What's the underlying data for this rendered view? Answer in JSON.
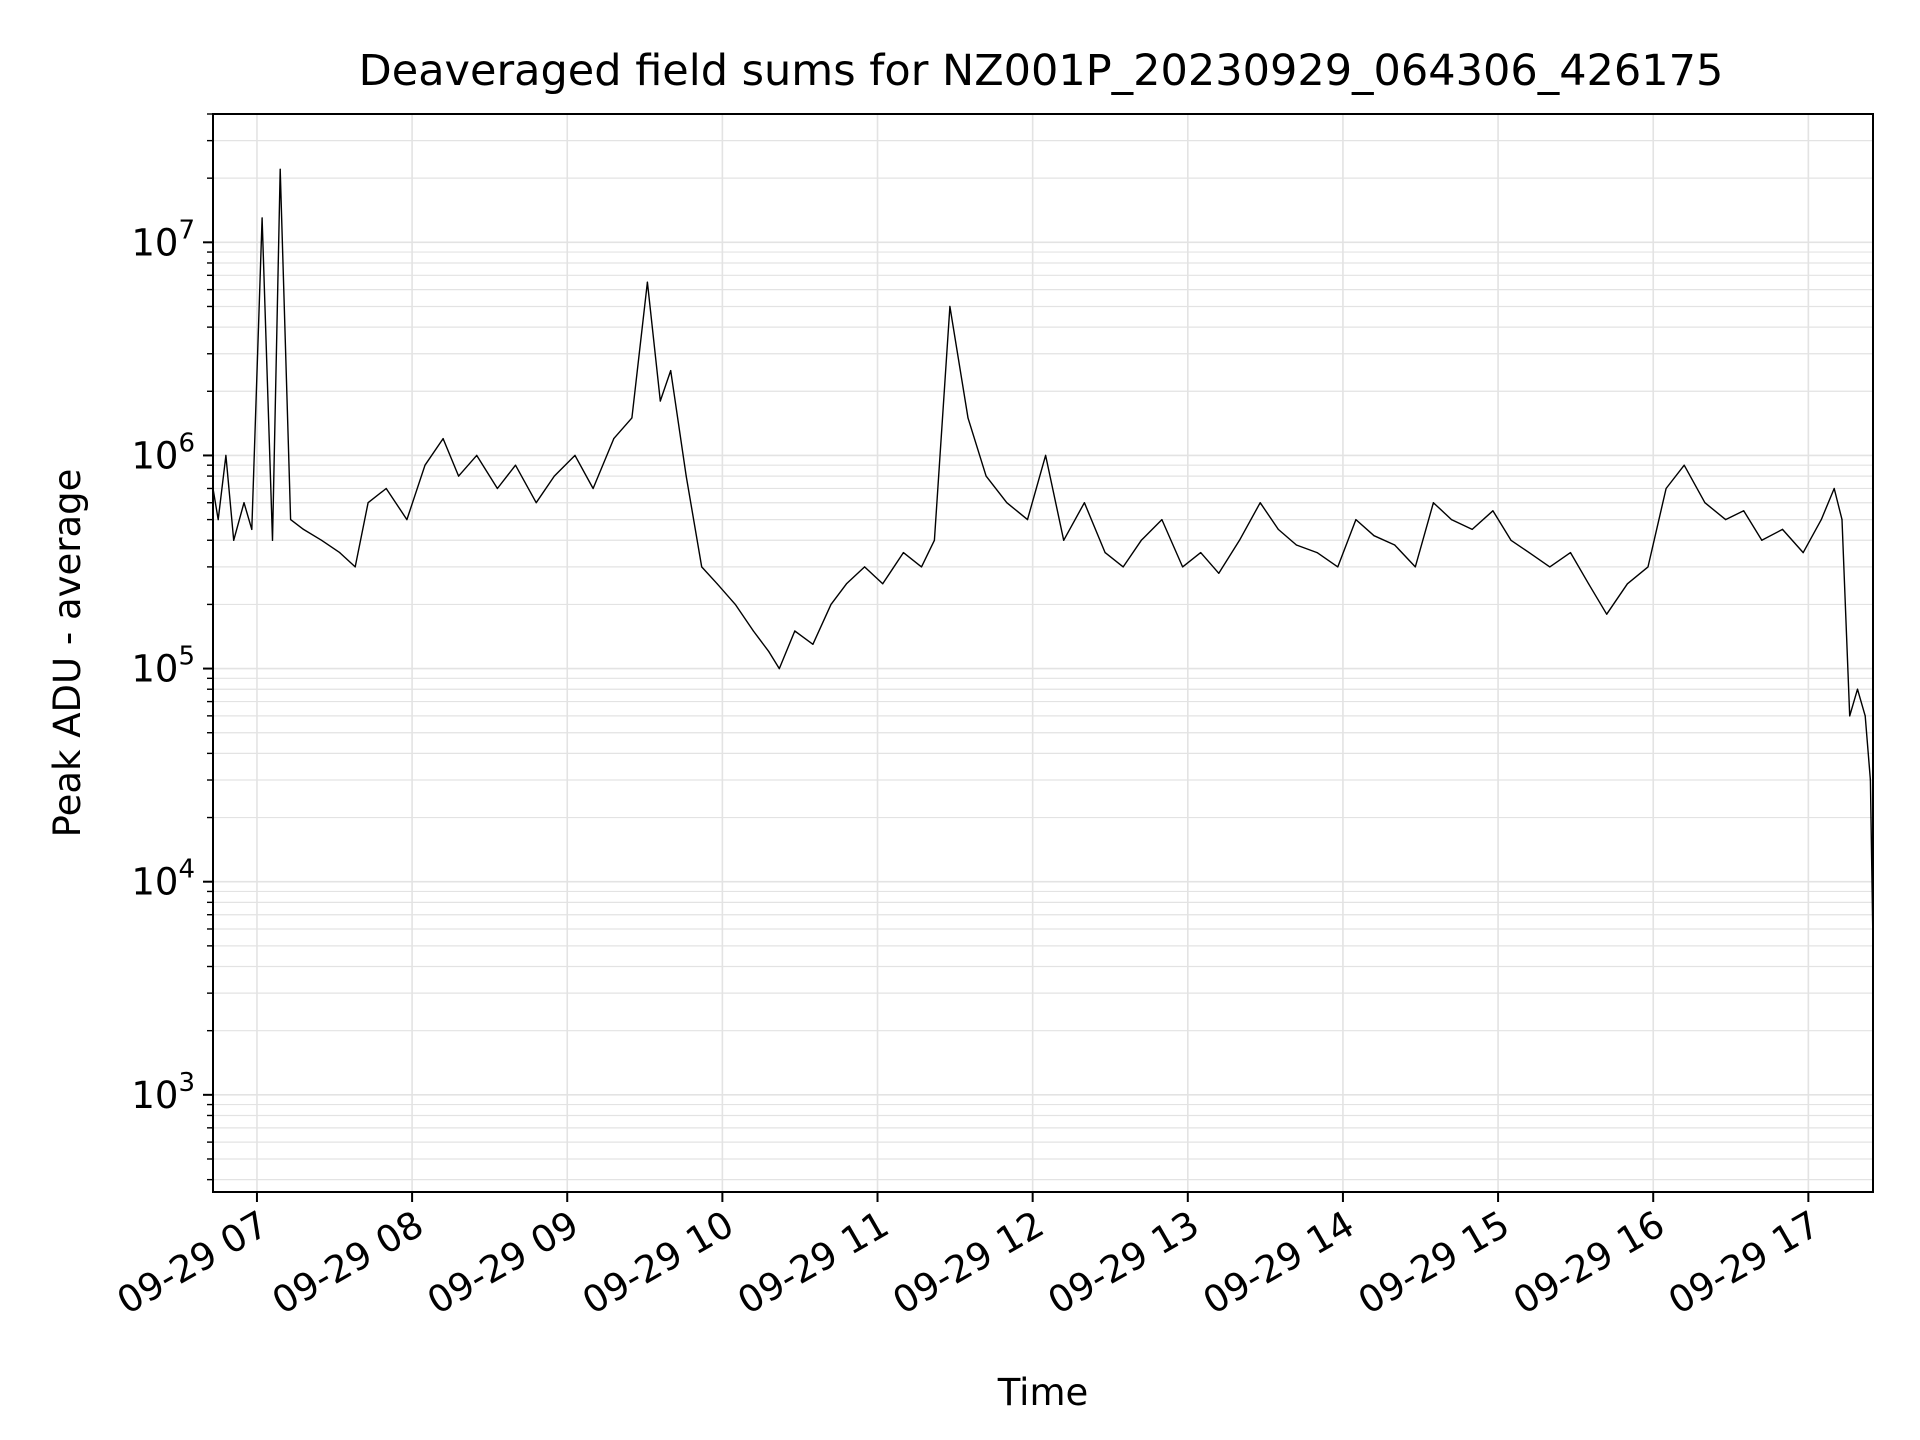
{
  "chart_data": {
    "type": "line",
    "title": "Deaveraged field sums for NZ001P_20230929_064306_426175",
    "xlabel": "Time",
    "ylabel": "Peak ADU - average",
    "yscale": "log",
    "ylim": [
      350,
      40000000
    ],
    "xlim": [
      "2023-09-29 06:43",
      "2023-09-29 17:25"
    ],
    "y_major_ticks": [
      {
        "value": 1000,
        "base": "10",
        "exp": "3"
      },
      {
        "value": 10000,
        "base": "10",
        "exp": "4"
      },
      {
        "value": 100000,
        "base": "10",
        "exp": "5"
      },
      {
        "value": 1000000,
        "base": "10",
        "exp": "6"
      },
      {
        "value": 10000000,
        "base": "10",
        "exp": "7"
      }
    ],
    "x_ticks": [
      {
        "value": "2023-09-29 07:00",
        "label": "09-29 07"
      },
      {
        "value": "2023-09-29 08:00",
        "label": "09-29 08"
      },
      {
        "value": "2023-09-29 09:00",
        "label": "09-29 09"
      },
      {
        "value": "2023-09-29 10:00",
        "label": "09-29 10"
      },
      {
        "value": "2023-09-29 11:00",
        "label": "09-29 11"
      },
      {
        "value": "2023-09-29 12:00",
        "label": "09-29 12"
      },
      {
        "value": "2023-09-29 13:00",
        "label": "09-29 13"
      },
      {
        "value": "2023-09-29 14:00",
        "label": "09-29 14"
      },
      {
        "value": "2023-09-29 15:00",
        "label": "09-29 15"
      },
      {
        "value": "2023-09-29 16:00",
        "label": "09-29 16"
      },
      {
        "value": "2023-09-29 17:00",
        "label": "09-29 17"
      }
    ],
    "grid": true,
    "line_color": "#000000",
    "series": [
      {
        "x": [
          "2023-09-29 06:43",
          "2023-09-29 06:45",
          "2023-09-29 06:48",
          "2023-09-29 06:51",
          "2023-09-29 06:55",
          "2023-09-29 06:58",
          "2023-09-29 07:02",
          "2023-09-29 07:06",
          "2023-09-29 07:09",
          "2023-09-29 07:13",
          "2023-09-29 07:18",
          "2023-09-29 07:25",
          "2023-09-29 07:32",
          "2023-09-29 07:38",
          "2023-09-29 07:43",
          "2023-09-29 07:50",
          "2023-09-29 07:58",
          "2023-09-29 08:05",
          "2023-09-29 08:12",
          "2023-09-29 08:18",
          "2023-09-29 08:25",
          "2023-09-29 08:33",
          "2023-09-29 08:40",
          "2023-09-29 08:48",
          "2023-09-29 08:55",
          "2023-09-29 09:03",
          "2023-09-29 09:10",
          "2023-09-29 09:18",
          "2023-09-29 09:25",
          "2023-09-29 09:31",
          "2023-09-29 09:36",
          "2023-09-29 09:40",
          "2023-09-29 09:46",
          "2023-09-29 09:52",
          "2023-09-29 09:58",
          "2023-09-29 10:05",
          "2023-09-29 10:12",
          "2023-09-29 10:18",
          "2023-09-29 10:22",
          "2023-09-29 10:28",
          "2023-09-29 10:35",
          "2023-09-29 10:42",
          "2023-09-29 10:48",
          "2023-09-29 10:55",
          "2023-09-29 11:02",
          "2023-09-29 11:10",
          "2023-09-29 11:17",
          "2023-09-29 11:22",
          "2023-09-29 11:28",
          "2023-09-29 11:35",
          "2023-09-29 11:42",
          "2023-09-29 11:50",
          "2023-09-29 11:58",
          "2023-09-29 12:05",
          "2023-09-29 12:12",
          "2023-09-29 12:20",
          "2023-09-29 12:28",
          "2023-09-29 12:35",
          "2023-09-29 12:42",
          "2023-09-29 12:50",
          "2023-09-29 12:58",
          "2023-09-29 13:05",
          "2023-09-29 13:12",
          "2023-09-29 13:20",
          "2023-09-29 13:28",
          "2023-09-29 13:35",
          "2023-09-29 13:42",
          "2023-09-29 13:50",
          "2023-09-29 13:58",
          "2023-09-29 14:05",
          "2023-09-29 14:12",
          "2023-09-29 14:20",
          "2023-09-29 14:28",
          "2023-09-29 14:35",
          "2023-09-29 14:42",
          "2023-09-29 14:50",
          "2023-09-29 14:58",
          "2023-09-29 15:05",
          "2023-09-29 15:12",
          "2023-09-29 15:20",
          "2023-09-29 15:28",
          "2023-09-29 15:35",
          "2023-09-29 15:42",
          "2023-09-29 15:50",
          "2023-09-29 15:58",
          "2023-09-29 16:05",
          "2023-09-29 16:12",
          "2023-09-29 16:20",
          "2023-09-29 16:28",
          "2023-09-29 16:35",
          "2023-09-29 16:42",
          "2023-09-29 16:50",
          "2023-09-29 16:58",
          "2023-09-29 17:05",
          "2023-09-29 17:10",
          "2023-09-29 17:13",
          "2023-09-29 17:16",
          "2023-09-29 17:19",
          "2023-09-29 17:22",
          "2023-09-29 17:24",
          "2023-09-29 17:25"
        ],
        "y": [
          700000,
          500000,
          1000000,
          400000,
          600000,
          450000,
          13000000,
          400000,
          22000000,
          500000,
          450000,
          400000,
          350000,
          300000,
          600000,
          700000,
          500000,
          900000,
          1200000,
          800000,
          1000000,
          700000,
          900000,
          600000,
          800000,
          1000000,
          700000,
          1200000,
          1500000,
          6500000,
          1800000,
          2500000,
          800000,
          300000,
          250000,
          200000,
          150000,
          120000,
          100000,
          150000,
          130000,
          200000,
          250000,
          300000,
          250000,
          350000,
          300000,
          400000,
          5000000,
          1500000,
          800000,
          600000,
          500000,
          1000000,
          400000,
          600000,
          350000,
          300000,
          400000,
          500000,
          300000,
          350000,
          280000,
          400000,
          600000,
          450000,
          380000,
          350000,
          300000,
          500000,
          420000,
          380000,
          300000,
          600000,
          500000,
          450000,
          550000,
          400000,
          350000,
          300000,
          350000,
          250000,
          180000,
          250000,
          300000,
          700000,
          900000,
          600000,
          500000,
          550000,
          400000,
          450000,
          350000,
          500000,
          700000,
          500000,
          60000,
          80000,
          60000,
          30000,
          5000
        ]
      }
    ]
  }
}
